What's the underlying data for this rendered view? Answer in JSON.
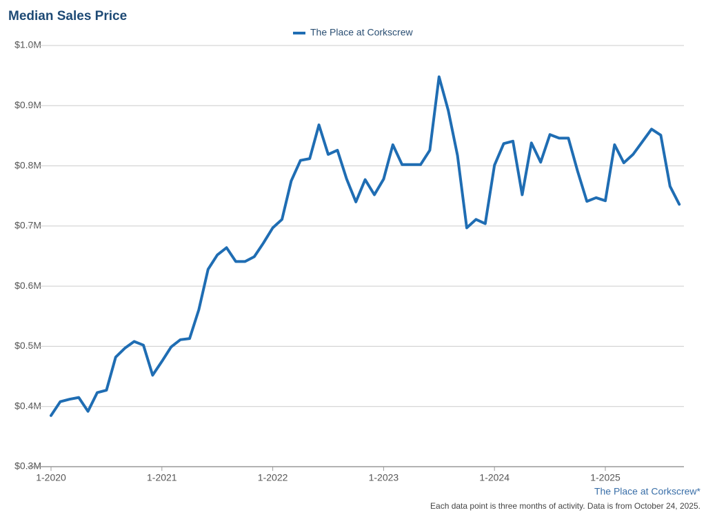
{
  "chart_data": {
    "type": "line",
    "title": "Median Sales Price",
    "footer_brand": "The Place at Corkscrew*",
    "footnote": "Each data point is three months of activity. Data is from October 24, 2025.",
    "categories": [
      "1-2020",
      null,
      null,
      null,
      null,
      null,
      null,
      null,
      null,
      null,
      null,
      null,
      "1-2021",
      null,
      null,
      null,
      null,
      null,
      null,
      null,
      null,
      null,
      null,
      null,
      "1-2022",
      null,
      null,
      null,
      null,
      null,
      null,
      null,
      null,
      null,
      null,
      null,
      "1-2023",
      null,
      null,
      null,
      null,
      null,
      null,
      null,
      null,
      null,
      null,
      null,
      "1-2024",
      null,
      null,
      null,
      null,
      null,
      null,
      null,
      null,
      null,
      null,
      null,
      "1-2025",
      null,
      null,
      null,
      null,
      null,
      null,
      null,
      null
    ],
    "series": [
      {
        "name": "The Place at Corkscrew",
        "color": "#1f6db3",
        "values": [
          0.385,
          0.408,
          0.412,
          0.415,
          0.392,
          0.423,
          0.427,
          0.482,
          0.497,
          0.508,
          0.502,
          0.452,
          0.475,
          0.499,
          0.511,
          0.513,
          0.561,
          0.628,
          0.652,
          0.664,
          0.641,
          0.641,
          0.649,
          0.672,
          0.697,
          0.711,
          0.775,
          0.809,
          0.812,
          0.868,
          0.819,
          0.826,
          0.778,
          0.74,
          0.777,
          0.752,
          0.778,
          0.835,
          0.802,
          0.802,
          0.802,
          0.826,
          0.948,
          0.892,
          0.817,
          0.697,
          0.711,
          0.704,
          0.801,
          0.837,
          0.841,
          0.752,
          0.838,
          0.806,
          0.852,
          0.846,
          0.846,
          0.791,
          0.741,
          0.747,
          0.742,
          0.835,
          0.805,
          0.819,
          0.84,
          0.861,
          0.851,
          0.766,
          0.736
        ]
      }
    ],
    "ylim": [
      0.3,
      1.0
    ],
    "yticks": [
      {
        "value": 0.3,
        "label": "$0.3M"
      },
      {
        "value": 0.4,
        "label": "$0.4M"
      },
      {
        "value": 0.5,
        "label": "$0.5M"
      },
      {
        "value": 0.6,
        "label": "$0.6M"
      },
      {
        "value": 0.7,
        "label": "$0.7M"
      },
      {
        "value": 0.8,
        "label": "$0.8M"
      },
      {
        "value": 0.9,
        "label": "$0.9M"
      },
      {
        "value": 1.0,
        "label": "$1.0M"
      }
    ],
    "grid": true,
    "legend": "top"
  }
}
